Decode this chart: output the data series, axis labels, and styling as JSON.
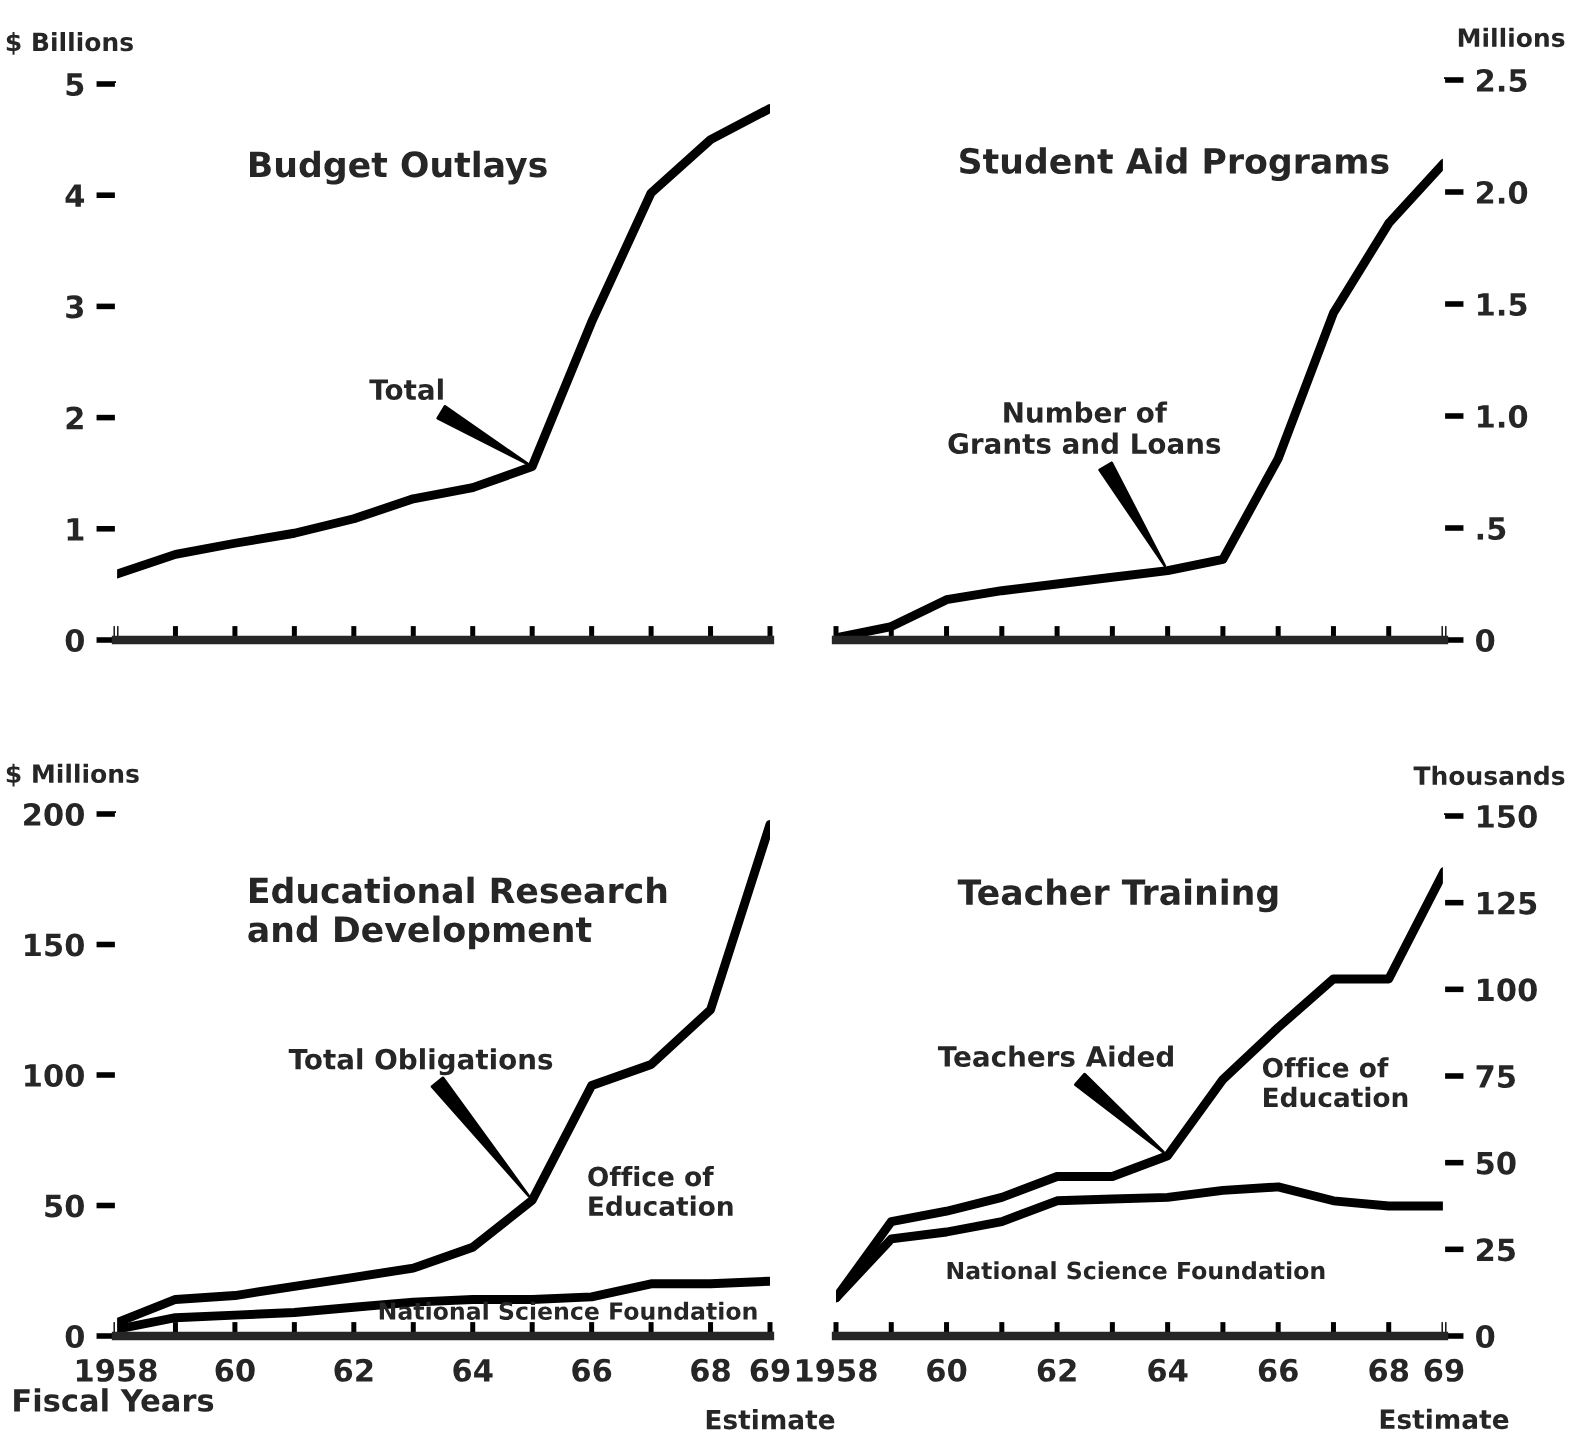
{
  "chart_data": [
    {
      "type": "line",
      "title": "Budget Outlays",
      "ylabel": "$ Billions",
      "x": [
        1958,
        1959,
        1960,
        1961,
        1962,
        1963,
        1964,
        1965,
        1966,
        1967,
        1968,
        1969
      ],
      "xlim": [
        1958,
        1969
      ],
      "xticks": [
        1958,
        1959,
        1960,
        1961,
        1962,
        1963,
        1964,
        1965,
        1966,
        1967,
        1968,
        1969
      ],
      "ylim": [
        0,
        5
      ],
      "yticks": [
        0,
        1,
        2,
        3,
        4,
        5
      ],
      "tick_labels": "y",
      "series": [
        {
          "name": "Total",
          "color": "#000000",
          "values": [
            0.59,
            0.77,
            0.87,
            0.96,
            1.09,
            1.27,
            1.37,
            1.56,
            2.86,
            4.02,
            4.5,
            4.78
          ]
        }
      ]
    },
    {
      "type": "line",
      "title": "Student Aid Programs",
      "ylabel": "Millions",
      "x": [
        1958,
        1959,
        1960,
        1961,
        1962,
        1963,
        1964,
        1965,
        1966,
        1967,
        1968,
        1969
      ],
      "xlim": [
        1958,
        1969
      ],
      "xticks": [
        1958,
        1959,
        1960,
        1961,
        1962,
        1963,
        1964,
        1965,
        1966,
        1967,
        1968,
        1969
      ],
      "ylim": [
        0,
        2.5
      ],
      "yticks": [
        0,
        {
          "value": 0.5,
          "label": ".5"
        },
        {
          "value": 1,
          "label": "1.0"
        },
        1.5,
        {
          "value": 2,
          "label": "2.0"
        },
        2.5
      ],
      "tick_labels": "y",
      "series": [
        {
          "name": "Number of\nGrants and Loans",
          "color": "#000000",
          "values": [
            0.01,
            0.06,
            0.18,
            0.22,
            0.25,
            0.28,
            0.31,
            0.36,
            0.81,
            1.46,
            1.86,
            2.13
          ]
        }
      ]
    },
    {
      "type": "line",
      "title": "Educational Research\nand Development",
      "ylabel": "$ Millions",
      "xlabel": "Fiscal Years",
      "x": [
        1958,
        1959,
        1960,
        1961,
        1962,
        1963,
        1964,
        1965,
        1966,
        1967,
        1968,
        1969
      ],
      "xlim": [
        1958,
        1969
      ],
      "xticks": [
        1958,
        {
          "value": 1959,
          "label": null
        },
        {
          "value": 1960,
          "label": "60"
        },
        {
          "value": 1961,
          "label": null
        },
        {
          "value": 1962,
          "label": "62"
        },
        {
          "value": 1963,
          "label": null
        },
        {
          "value": 1964,
          "label": "64"
        },
        {
          "value": 1965,
          "label": null
        },
        {
          "value": 1966,
          "label": "66"
        },
        {
          "value": 1967,
          "label": null
        },
        {
          "value": 1968,
          "label": "68"
        },
        {
          "value": 1969,
          "label": "69"
        }
      ],
      "ylim": [
        0,
        200
      ],
      "yticks": [
        0,
        50,
        100,
        150,
        200
      ],
      "series": [
        {
          "name": "Total Obligations",
          "color": "#000000",
          "values": [
            5,
            14,
            15.5,
            19,
            22.5,
            26,
            34,
            52,
            96,
            104,
            125,
            196
          ]
        },
        {
          "color": "#000000",
          "values": [
            2.5,
            7,
            8,
            9,
            11,
            13,
            14,
            14,
            15,
            20,
            20,
            21
          ]
        }
      ],
      "annotations": [
        "Office of\nEducation",
        "National Science Foundation",
        "Estimate"
      ]
    },
    {
      "type": "line",
      "title": "Teacher Training",
      "ylabel": "Thousands",
      "x": [
        1958,
        1959,
        1960,
        1961,
        1962,
        1963,
        1964,
        1965,
        1966,
        1967,
        1968,
        1969
      ],
      "xlim": [
        1958,
        1969
      ],
      "xticks": [
        1958,
        {
          "value": 1959,
          "label": null
        },
        {
          "value": 1960,
          "label": "60"
        },
        {
          "value": 1961,
          "label": null
        },
        {
          "value": 1962,
          "label": "62"
        },
        {
          "value": 1963,
          "label": null
        },
        {
          "value": 1964,
          "label": "64"
        },
        {
          "value": 1965,
          "label": null
        },
        {
          "value": 1966,
          "label": "66"
        },
        {
          "value": 1967,
          "label": null
        },
        {
          "value": 1968,
          "label": "68"
        },
        {
          "value": 1969,
          "label": "69"
        }
      ],
      "ylim": [
        0,
        150
      ],
      "yticks": [
        0,
        25,
        50,
        75,
        100,
        125,
        150
      ],
      "series": [
        {
          "name": "Teachers Aided",
          "color": "#000000",
          "values": [
            11,
            33,
            36,
            40,
            46,
            46,
            52,
            74,
            89,
            103,
            103,
            134
          ]
        },
        {
          "color": "#000000",
          "values": [
            11,
            28,
            30,
            33,
            39,
            39.5,
            40,
            42,
            43,
            39,
            37.5,
            37.5
          ]
        }
      ],
      "annotations": [
        "Office of\nEducation",
        "National Science Foundation",
        "Estimate"
      ]
    }
  ]
}
